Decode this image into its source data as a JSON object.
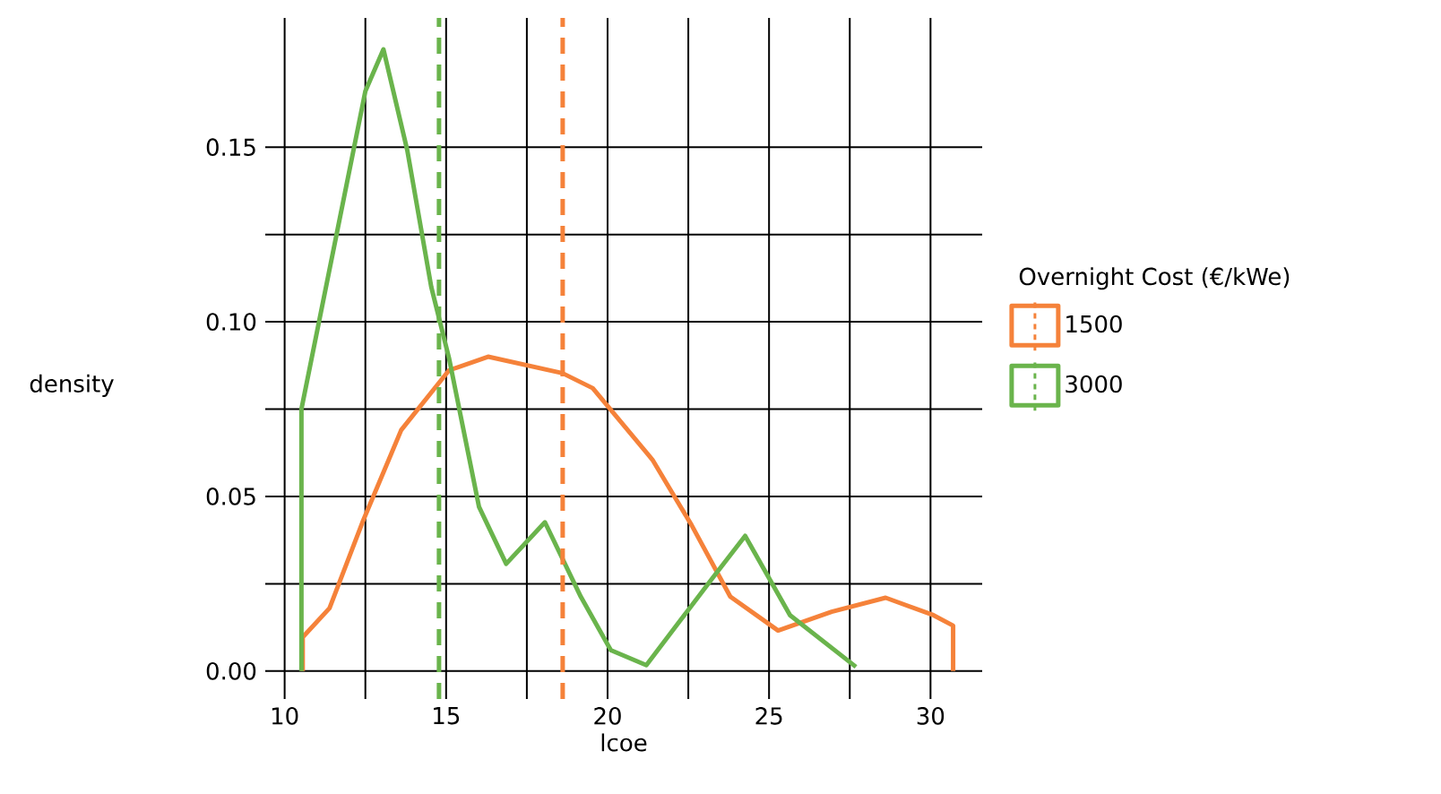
{
  "chart_data": {
    "type": "line",
    "xlabel": "lcoe",
    "ylabel": "density",
    "legend_title": "Overnight Cost (€/kWe)",
    "xlim": [
      9.4,
      31.6
    ],
    "ylim": [
      -0.008,
      0.187
    ],
    "xticks": [
      10,
      15,
      20,
      25,
      30
    ],
    "yticks": [
      {
        "value": 0,
        "label": "0.00"
      },
      {
        "value": 0.05,
        "label": "0.05"
      },
      {
        "value": 0.1,
        "label": "0.10"
      },
      {
        "value": 0.15,
        "label": "0.15"
      }
    ],
    "grid": true,
    "legend": "right",
    "line_style": "solid",
    "marker": "none",
    "series": [
      {
        "name": "1500",
        "color": "#f5823a",
        "x": [
          10.56,
          10.56,
          11.39,
          12.41,
          13.61,
          15.09,
          16.3,
          18.6,
          19.54,
          21.39,
          22.6,
          23.8,
          25.28,
          26.94,
          28.61,
          30.09,
          30.7,
          30.7
        ],
        "values": [
          0,
          0.0097,
          0.018,
          0.0426,
          0.069,
          0.0861,
          0.09,
          0.0853,
          0.081,
          0.0605,
          0.0418,
          0.0213,
          0.0116,
          0.017,
          0.021,
          0.016,
          0.013,
          0
        ]
      },
      {
        "name": "3000",
        "color": "#6ab44c",
        "x": [
          10.52,
          10.52,
          12.5,
          13.06,
          13.8,
          14.54,
          15.09,
          16.02,
          16.86,
          18.06,
          19.17,
          20.1,
          21.2,
          23.24,
          24.26,
          25.65,
          27.69
        ],
        "values": [
          0,
          0.075,
          0.166,
          0.178,
          0.149,
          0.11,
          0.0896,
          0.047,
          0.0307,
          0.0426,
          0.0213,
          0.006,
          0.0017,
          0.0265,
          0.0387,
          0.016,
          0.0012
        ]
      }
    ],
    "ref_lines": [
      {
        "axis": "x",
        "value": 18.61,
        "color": "#f5823a",
        "line_style": "dashed"
      },
      {
        "axis": "x",
        "value": 14.78,
        "color": "#6ab44c",
        "line_style": "dashed"
      }
    ]
  }
}
